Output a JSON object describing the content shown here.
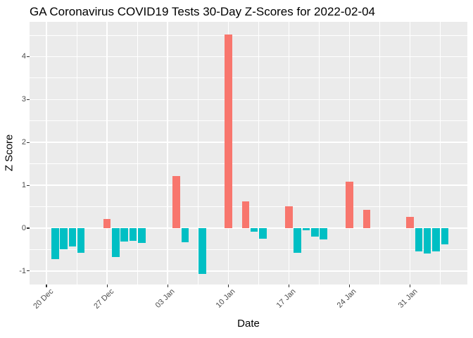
{
  "chart_data": {
    "type": "bar",
    "title": "GA Coronavirus COVID19 Tests 30-Day Z-Scores for 2022-02-04",
    "xlabel": "Date",
    "ylabel": "Z Score",
    "x_origin_date": "2021-12-20",
    "x_ticks": [
      {
        "date": "2021-12-20",
        "label": "20 Dec"
      },
      {
        "date": "2021-12-27",
        "label": "27 Dec"
      },
      {
        "date": "2022-01-03",
        "label": "03 Jan"
      },
      {
        "date": "2022-01-10",
        "label": "10 Jan"
      },
      {
        "date": "2022-01-17",
        "label": "17 Jan"
      },
      {
        "date": "2022-01-24",
        "label": "24 Jan"
      },
      {
        "date": "2022-01-31",
        "label": "31 Jan"
      }
    ],
    "y_ticks": [
      4,
      3,
      2,
      1,
      0,
      -1
    ],
    "y_minor_ticks": [
      4.5,
      3.5,
      2.5,
      1.5,
      0.5,
      -0.5
    ],
    "ylim": [
      -1.31,
      4.81
    ],
    "xlim_days": [
      -1.95,
      48.6
    ],
    "grid": true,
    "legend_position": "none",
    "colors": {
      "positive_bar": "#F8766D",
      "negative_bar": "#00BFC4",
      "panel_background": "#EBEBEB",
      "gridline": "#FFFFFF",
      "tick_mark": "#333333",
      "tick_label": "#4D4D4D",
      "text": "#000000"
    },
    "points": [
      {
        "date": "2021-12-21",
        "z": -0.72
      },
      {
        "date": "2021-12-22",
        "z": -0.49
      },
      {
        "date": "2021-12-23",
        "z": -0.43
      },
      {
        "date": "2021-12-24",
        "z": -0.58
      },
      {
        "date": "2021-12-27",
        "z": 0.22
      },
      {
        "date": "2021-12-28",
        "z": -0.68
      },
      {
        "date": "2021-12-29",
        "z": -0.32
      },
      {
        "date": "2021-12-30",
        "z": -0.3
      },
      {
        "date": "2021-12-31",
        "z": -0.35
      },
      {
        "date": "2022-01-04",
        "z": 1.21
      },
      {
        "date": "2022-01-05",
        "z": -0.33
      },
      {
        "date": "2022-01-07",
        "z": -1.06
      },
      {
        "date": "2022-01-10",
        "z": 4.52
      },
      {
        "date": "2022-01-12",
        "z": 0.63
      },
      {
        "date": "2022-01-13",
        "z": -0.09
      },
      {
        "date": "2022-01-14",
        "z": -0.25
      },
      {
        "date": "2022-01-17",
        "z": 0.51
      },
      {
        "date": "2022-01-18",
        "z": -0.57
      },
      {
        "date": "2022-01-19",
        "z": -0.05
      },
      {
        "date": "2022-01-20",
        "z": -0.2
      },
      {
        "date": "2022-01-21",
        "z": -0.26
      },
      {
        "date": "2022-01-24",
        "z": 1.09
      },
      {
        "date": "2022-01-26",
        "z": 0.42
      },
      {
        "date": "2022-01-31",
        "z": 0.26
      },
      {
        "date": "2022-02-01",
        "z": -0.55
      },
      {
        "date": "2022-02-02",
        "z": -0.59
      },
      {
        "date": "2022-02-03",
        "z": -0.54
      },
      {
        "date": "2022-02-04",
        "z": -0.38
      }
    ]
  }
}
